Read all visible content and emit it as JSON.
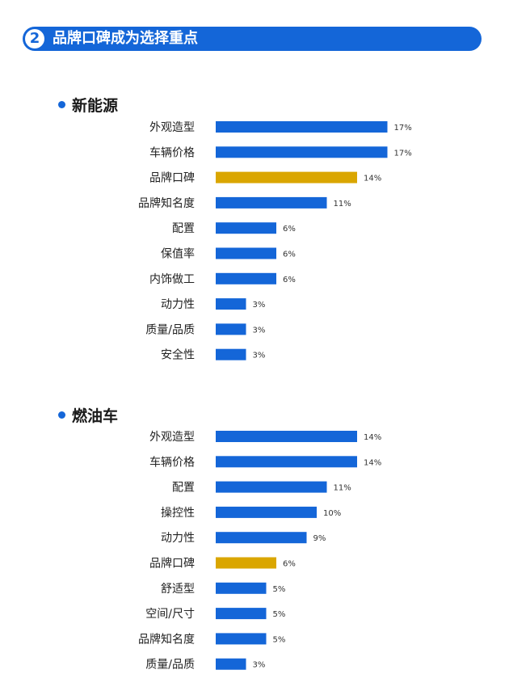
{
  "header": {
    "badge": "2",
    "title": "品牌口碑成为选择重点"
  },
  "colors": {
    "primary": "#1466d8",
    "highlight": "#daa600",
    "text": "#222222"
  },
  "chart_data": [
    {
      "type": "bar",
      "orientation": "horizontal",
      "title": "新能源",
      "categories": [
        "外观造型",
        "车辆价格",
        "品牌口碑",
        "品牌知名度",
        "配置",
        "保值率",
        "内饰做工",
        "动力性",
        "质量/品质",
        "安全性"
      ],
      "values": [
        17,
        17,
        14,
        11,
        6,
        6,
        6,
        3,
        3,
        3
      ],
      "value_labels": [
        "17%",
        "17%",
        "14%",
        "11%",
        "6%",
        "6%",
        "6%",
        "3%",
        "3%",
        "3%"
      ],
      "highlight_category": "品牌口碑",
      "unit": "%"
    },
    {
      "type": "bar",
      "orientation": "horizontal",
      "title": "燃油车",
      "categories": [
        "外观造型",
        "车辆价格",
        "配置",
        "操控性",
        "动力性",
        "品牌口碑",
        "舒适型",
        "空间/尺寸",
        "品牌知名度",
        "质量/品质"
      ],
      "values": [
        14,
        14,
        11,
        10,
        9,
        6,
        5,
        5,
        5,
        3
      ],
      "value_labels": [
        "14%",
        "14%",
        "11%",
        "10%",
        "9%",
        "6%",
        "5%",
        "5%",
        "5%",
        "3%"
      ],
      "highlight_category": "品牌口碑",
      "unit": "%"
    }
  ]
}
